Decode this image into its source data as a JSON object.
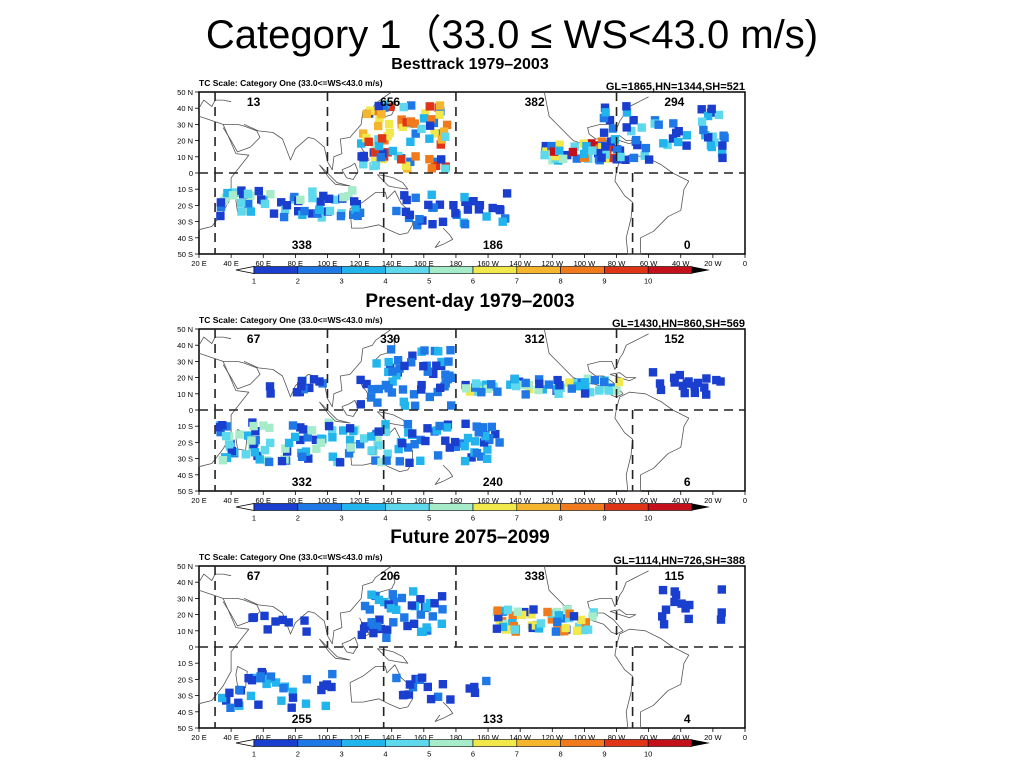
{
  "slide": {
    "title": "Category 1（33.0 ≤ WS<43.0 m/s)"
  },
  "common": {
    "scale_label": "TC Scale: Category One (33.0<=WS<43.0 m/s)",
    "lat_labels": [
      "50 N",
      "40 N",
      "30 N",
      "20 N",
      "10 N",
      "0",
      "10 S",
      "20 S",
      "30 S",
      "40 S",
      "50 S"
    ],
    "lon_labels": [
      "20 E",
      "40 E",
      "60 E",
      "80 E",
      "100 E",
      "120 E",
      "140 E",
      "160 E",
      "180",
      "160 W",
      "140 W",
      "120 W",
      "100 W",
      "80 W",
      "60 W",
      "40 W",
      "20 W",
      "0"
    ],
    "colorbar": {
      "ticks": [
        "1",
        "2",
        "3",
        "4",
        "5",
        "6",
        "7",
        "8",
        "9",
        "10"
      ],
      "colors": [
        "#1a3fcf",
        "#1e78e6",
        "#22b4ec",
        "#5ed8ec",
        "#a6eccb",
        "#f1e94c",
        "#f6b52f",
        "#f07a1c",
        "#e03416",
        "#c4101a"
      ]
    },
    "cell_colors": {
      "1": "#1a3fcf",
      "2": "#1e78e6",
      "3": "#22b4ec",
      "4": "#5ed8ec",
      "5": "#a6eccb",
      "6": "#f1e94c",
      "7": "#f6b52f",
      "8": "#f07a1c",
      "9": "#e03416",
      "10": "#c4101a"
    }
  },
  "panels": [
    {
      "title": "Besttrack 1979–2003",
      "totals": "GL=1865,HN=1344,SH=521",
      "regions": {
        "nio": "13",
        "wnp": "656",
        "cnp": "382",
        "atl": "294",
        "sio": "338",
        "spac": "186",
        "satl": "0"
      },
      "density_clusters": [
        {
          "name": "wnp",
          "lon": [
            118,
            172
          ],
          "lat": [
            5,
            45
          ],
          "n": 85,
          "levels": [
            1,
            2,
            3,
            4,
            5,
            6,
            7,
            8,
            9
          ]
        },
        {
          "name": "enp",
          "lon": [
            230,
            280
          ],
          "lat": [
            10,
            22
          ],
          "n": 50,
          "levels": [
            1,
            2,
            3,
            4,
            5,
            6,
            8,
            9,
            10
          ]
        },
        {
          "name": "atl",
          "lon": [
            262,
            345
          ],
          "lat": [
            10,
            45
          ],
          "n": 60,
          "levels": [
            1,
            1,
            2,
            3,
            4
          ]
        },
        {
          "name": "sio",
          "lon": [
            30,
            120
          ],
          "lat": [
            -25,
            -8
          ],
          "n": 60,
          "levels": [
            1,
            2,
            3,
            4,
            5
          ]
        },
        {
          "name": "spac",
          "lon": [
            140,
            210
          ],
          "lat": [
            -30,
            -10
          ],
          "n": 35,
          "levels": [
            1,
            1,
            2,
            3
          ]
        }
      ]
    },
    {
      "title": "Present-day 1979–2003",
      "totals": "GL=1430,HN=860,SH=569",
      "regions": {
        "nio": "67",
        "wnp": "330",
        "cnp": "312",
        "atl": "152",
        "sio": "332",
        "spac": "240",
        "satl": "6"
      },
      "density_clusters": [
        {
          "name": "nio",
          "lon": [
            55,
            95
          ],
          "lat": [
            12,
            22
          ],
          "n": 12,
          "levels": [
            1,
            1,
            2
          ]
        },
        {
          "name": "wnp",
          "lon": [
            118,
            175
          ],
          "lat": [
            5,
            40
          ],
          "n": 55,
          "levels": [
            1,
            1,
            2,
            2,
            3
          ]
        },
        {
          "name": "enp",
          "lon": [
            182,
            282
          ],
          "lat": [
            12,
            22
          ],
          "n": 55,
          "levels": [
            1,
            2,
            3,
            4,
            5,
            6
          ]
        },
        {
          "name": "atl",
          "lon": [
            300,
            345
          ],
          "lat": [
            12,
            30
          ],
          "n": 18,
          "levels": [
            1,
            1
          ]
        },
        {
          "name": "sio",
          "lon": [
            30,
            135
          ],
          "lat": [
            -30,
            -5
          ],
          "n": 90,
          "levels": [
            1,
            1,
            2,
            3,
            4,
            5
          ]
        },
        {
          "name": "spac",
          "lon": [
            140,
            205
          ],
          "lat": [
            -30,
            -5
          ],
          "n": 50,
          "levels": [
            1,
            2,
            3
          ]
        }
      ]
    },
    {
      "title": "Future 2075–2099",
      "totals": "GL=1114,HN=726,SH=388",
      "regions": {
        "nio": "67",
        "wnp": "206",
        "cnp": "338",
        "atl": "115",
        "sio": "255",
        "spac": "133",
        "satl": "4"
      },
      "density_clusters": [
        {
          "name": "nio",
          "lon": [
            50,
            95
          ],
          "lat": [
            12,
            22
          ],
          "n": 10,
          "levels": [
            1,
            1
          ]
        },
        {
          "name": "wnp",
          "lon": [
            118,
            170
          ],
          "lat": [
            8,
            38
          ],
          "n": 45,
          "levels": [
            1,
            1,
            2,
            3
          ]
        },
        {
          "name": "enp",
          "lon": [
            200,
            268
          ],
          "lat": [
            12,
            26
          ],
          "n": 55,
          "levels": [
            1,
            2,
            3,
            4,
            5,
            6,
            8
          ]
        },
        {
          "name": "atl",
          "lon": [
            300,
            345
          ],
          "lat": [
            15,
            40
          ],
          "n": 14,
          "levels": [
            1,
            1
          ]
        },
        {
          "name": "sio",
          "lon": [
            30,
            105
          ],
          "lat": [
            -35,
            -12
          ],
          "n": 35,
          "levels": [
            1,
            1,
            2,
            3
          ]
        },
        {
          "name": "spac",
          "lon": [
            140,
            200
          ],
          "lat": [
            -30,
            -15
          ],
          "n": 18,
          "levels": [
            1,
            1,
            2
          ]
        }
      ]
    }
  ]
}
